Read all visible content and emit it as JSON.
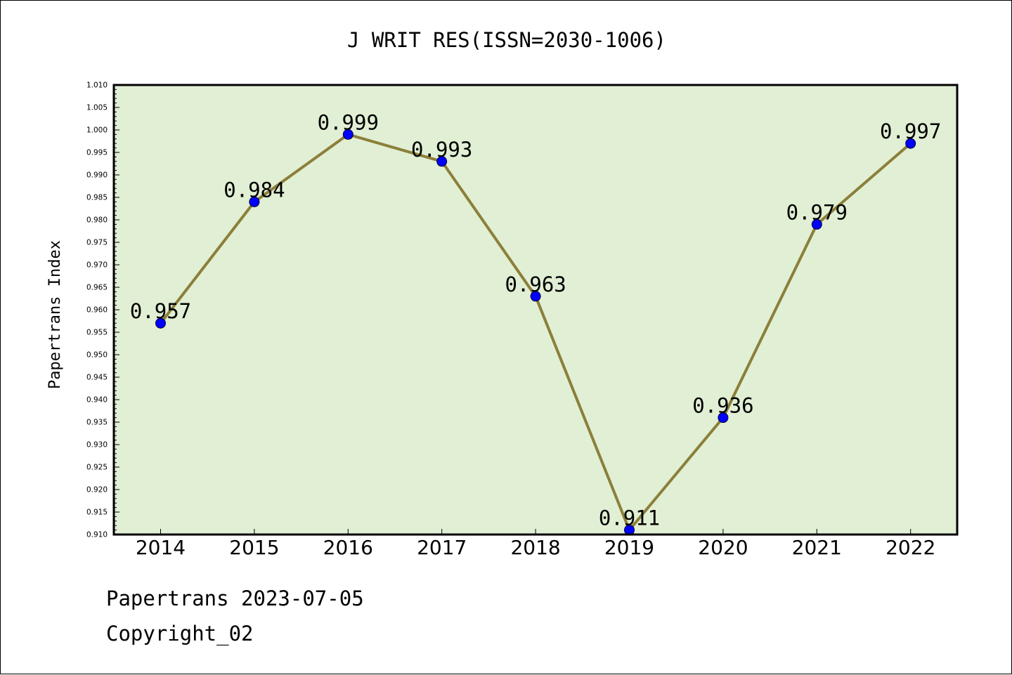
{
  "chart_data": {
    "type": "line",
    "title": "J WRIT RES(ISSN=2030-1006)",
    "xlabel": "",
    "ylabel": "Papertrans Index",
    "categories": [
      "2014",
      "2015",
      "2016",
      "2017",
      "2018",
      "2019",
      "2020",
      "2021",
      "2022"
    ],
    "series": [
      {
        "values": [
          0.957,
          0.984,
          0.999,
          0.993,
          0.963,
          0.911,
          0.936,
          0.979,
          0.997
        ],
        "data_labels": [
          "0.957",
          "0.984",
          "0.999",
          "0.993",
          "0.963",
          "0.911",
          "0.936",
          "0.979",
          "0.997"
        ]
      }
    ],
    "ylim": [
      0.91,
      1.01
    ],
    "yticks": [
      "0.910",
      "0.915",
      "0.920",
      "0.925",
      "0.930",
      "0.935",
      "0.940",
      "0.945",
      "0.950",
      "0.955",
      "0.960",
      "0.965",
      "0.970",
      "0.975",
      "0.980",
      "0.985",
      "0.990",
      "0.995",
      "1.000",
      "1.005",
      "1.010"
    ],
    "grid": false,
    "legend": "none",
    "colors": {
      "plot_background": "#e1efd4",
      "line": "#8b7f3a",
      "marker": "#0000ff"
    }
  },
  "footer": {
    "line1": "Papertrans 2023-07-05",
    "line2": "Copyright_02"
  }
}
